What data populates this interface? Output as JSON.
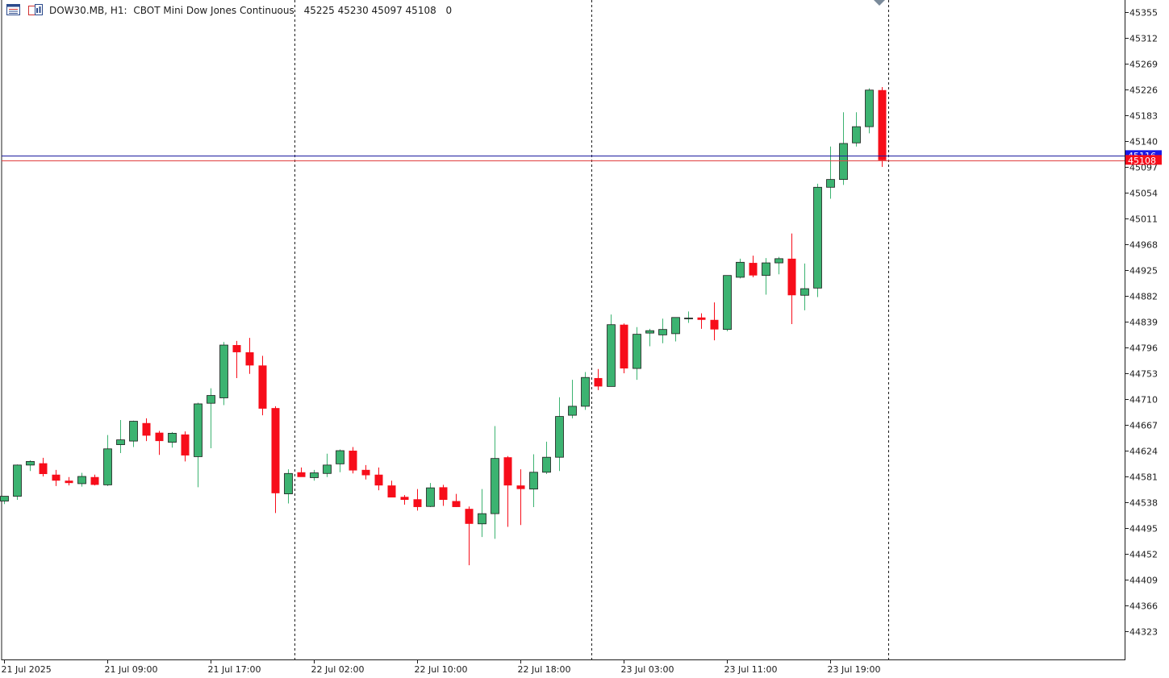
{
  "header": {
    "symbol": "DOW30.MB, H1:",
    "description": "CBOT Mini Dow Jones Continuous",
    "ohlc": "45225 45230 45097 45108",
    "extra": "0"
  },
  "icons": {
    "menu": "chart-list-icon",
    "window": "window-icon",
    "marker": "scroll-marker-icon"
  },
  "colors": {
    "bull": "#3cb371",
    "bear": "#f70d1a",
    "outline": "#1c1c1c",
    "axis": "#1c1c1c",
    "separator": "#1c1c1c",
    "ask_line": "#1a1a9f",
    "bid_line": "#e04040",
    "ask_tag": "#1a1ae6",
    "bid_tag": "#f70d1a"
  },
  "chart_data": {
    "type": "candlestick",
    "timeframe": "H1",
    "y_ticks": [
      45355,
      45312,
      45269,
      45226,
      45183,
      45140,
      45097,
      45054,
      45011,
      44968,
      44925,
      44882,
      44839,
      44796,
      44753,
      44710,
      44667,
      44624,
      44581,
      44538,
      44495,
      44452,
      44409,
      44366,
      44323
    ],
    "x_ticks": [
      {
        "label": "21 Jul 2025",
        "bar": 0
      },
      {
        "label": "21 Jul 09:00",
        "bar": 8
      },
      {
        "label": "21 Jul 17:00",
        "bar": 16
      },
      {
        "label": "22 Jul 02:00",
        "bar": 24
      },
      {
        "label": "22 Jul 10:00",
        "bar": 32
      },
      {
        "label": "22 Jul 18:00",
        "bar": 40
      },
      {
        "label": "23 Jul 03:00",
        "bar": 48
      },
      {
        "label": "23 Jul 11:00",
        "bar": 56
      },
      {
        "label": "23 Jul 19:00",
        "bar": 64
      }
    ],
    "day_separators_after_bar": [
      22,
      45,
      68
    ],
    "ask_price": 45116,
    "bid_price": 45108,
    "ohlc": [
      [
        44540,
        44548,
        44535,
        44548
      ],
      [
        44548,
        44601,
        44542,
        44600
      ],
      [
        44600,
        44608,
        44590,
        44606
      ],
      [
        44603,
        44612,
        44581,
        44585
      ],
      [
        44584,
        44592,
        44565,
        44574
      ],
      [
        44574,
        44580,
        44566,
        44570
      ],
      [
        44569,
        44587,
        44564,
        44581
      ],
      [
        44580,
        44584,
        44566,
        44567
      ],
      [
        44567,
        44650,
        44565,
        44627
      ],
      [
        44634,
        44675,
        44620,
        44642
      ],
      [
        44640,
        44674,
        44630,
        44673
      ],
      [
        44670,
        44678,
        44640,
        44649
      ],
      [
        44654,
        44657,
        44617,
        44640
      ],
      [
        44638,
        44655,
        44629,
        44653
      ],
      [
        44651,
        44656,
        44606,
        44616
      ],
      [
        44614,
        44704,
        44563,
        44702
      ],
      [
        44703,
        44728,
        44628,
        44716
      ],
      [
        44712,
        44805,
        44700,
        44800
      ],
      [
        44800,
        44807,
        44745,
        44788
      ],
      [
        44788,
        44812,
        44752,
        44766
      ],
      [
        44766,
        44782,
        44683,
        44694
      ],
      [
        44695,
        44698,
        44520,
        44553
      ],
      [
        44552,
        44593,
        44536,
        44586
      ],
      [
        44588,
        44596,
        44582,
        44580
      ],
      [
        44579,
        44592,
        44574,
        44587
      ],
      [
        44586,
        44619,
        44580,
        44600
      ],
      [
        44602,
        44626,
        44588,
        44624
      ],
      [
        44624,
        44630,
        44586,
        44591
      ],
      [
        44592,
        44600,
        44576,
        44583
      ],
      [
        44584,
        44596,
        44558,
        44566
      ],
      [
        44566,
        44574,
        44546,
        44546
      ],
      [
        44547,
        44550,
        44534,
        44542
      ],
      [
        44543,
        44560,
        44524,
        44530
      ],
      [
        44531,
        44570,
        44530,
        44562
      ],
      [
        44563,
        44567,
        44532,
        44542
      ],
      [
        44540,
        44552,
        44530,
        44530
      ],
      [
        44527,
        44531,
        44433,
        44502
      ],
      [
        44502,
        44560,
        44480,
        44519
      ],
      [
        44519,
        44665,
        44477,
        44611
      ],
      [
        44613,
        44615,
        44497,
        44566
      ],
      [
        44566,
        44593,
        44500,
        44560
      ],
      [
        44560,
        44618,
        44530,
        44588
      ],
      [
        44588,
        44639,
        44585,
        44613
      ],
      [
        44613,
        44713,
        44590,
        44681
      ],
      [
        44683,
        44742,
        44678,
        44698
      ],
      [
        44698,
        44755,
        44692,
        44746
      ],
      [
        44745,
        44760,
        44725,
        44731
      ],
      [
        44731,
        44851,
        44731,
        44834
      ],
      [
        44834,
        44836,
        44753,
        44761
      ],
      [
        44761,
        44830,
        44742,
        44818
      ],
      [
        44820,
        44827,
        44798,
        44824
      ],
      [
        44817,
        44844,
        44803,
        44826
      ],
      [
        44819,
        44846,
        44806,
        44846
      ],
      [
        44845,
        44856,
        44837,
        44845
      ],
      [
        44846,
        44853,
        44827,
        44842
      ],
      [
        44842,
        44871,
        44808,
        44826
      ],
      [
        44826,
        44916,
        44823,
        44916
      ],
      [
        44913,
        44944,
        44911,
        44938
      ],
      [
        44937,
        44949,
        44913,
        44916
      ],
      [
        44916,
        44945,
        44884,
        44937
      ],
      [
        44937,
        44947,
        44918,
        44944
      ],
      [
        44944,
        44986,
        44835,
        44883
      ],
      [
        44883,
        44936,
        44858,
        44894
      ],
      [
        44895,
        45069,
        44880,
        45063
      ],
      [
        45063,
        45131,
        45044,
        45076
      ],
      [
        45076,
        45188,
        45067,
        45136
      ],
      [
        45137,
        45188,
        45131,
        45164
      ],
      [
        45164,
        45228,
        45153,
        45225
      ],
      [
        45225,
        45230,
        45097,
        45108
      ]
    ]
  }
}
